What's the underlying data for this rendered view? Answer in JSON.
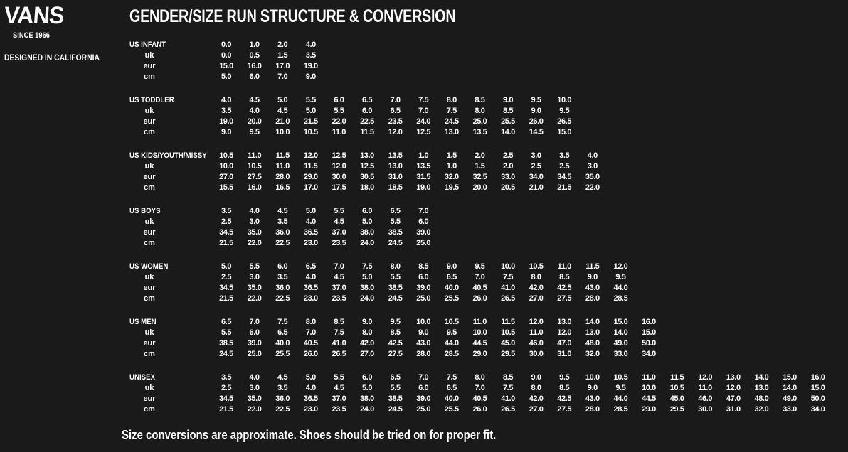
{
  "brand": {
    "logo_text": "VANS",
    "since": "SINCE 1966",
    "tagline": "DESIGNED IN CALIFORNIA"
  },
  "title": "GENDER/SIZE RUN STRUCTURE & CONVERSION",
  "sub_labels": [
    "uk",
    "eur",
    "cm"
  ],
  "sections": [
    {
      "label": "US INFANT",
      "us": [
        "0.0",
        "1.0",
        "2.0",
        "4.0"
      ],
      "uk": [
        "0.0",
        "0.5",
        "1.5",
        "3.5"
      ],
      "eur": [
        "15.0",
        "16.0",
        "17.0",
        "19.0"
      ],
      "cm": [
        "5.0",
        "6.0",
        "7.0",
        "9.0"
      ]
    },
    {
      "label": "US TODDLER",
      "us": [
        "4.0",
        "4.5",
        "5.0",
        "5.5",
        "6.0",
        "6.5",
        "7.0",
        "7.5",
        "8.0",
        "8.5",
        "9.0",
        "9.5",
        "10.0"
      ],
      "uk": [
        "3.5",
        "4.0",
        "4.5",
        "5.0",
        "5.5",
        "6.0",
        "6.5",
        "7.0",
        "7.5",
        "8.0",
        "8.5",
        "9.0",
        "9.5"
      ],
      "eur": [
        "19.0",
        "20.0",
        "21.0",
        "21.5",
        "22.0",
        "22.5",
        "23.5",
        "24.0",
        "24.5",
        "25.0",
        "25.5",
        "26.0",
        "26.5"
      ],
      "cm": [
        "9.0",
        "9.5",
        "10.0",
        "10.5",
        "11.0",
        "11.5",
        "12.0",
        "12.5",
        "13.0",
        "13.5",
        "14.0",
        "14.5",
        "15.0"
      ]
    },
    {
      "label": "US KIDS/YOUTH/MISSY",
      "us": [
        "10.5",
        "11.0",
        "11.5",
        "12.0",
        "12.5",
        "13.0",
        "13.5",
        "1.0",
        "1.5",
        "2.0",
        "2.5",
        "3.0",
        "3.5",
        "4.0"
      ],
      "uk": [
        "10.0",
        "10.5",
        "11.0",
        "11.5",
        "12.0",
        "12.5",
        "13.0",
        "13.5",
        "1.0",
        "1.5",
        "2.0",
        "2.5",
        "2.5",
        "3.0"
      ],
      "eur": [
        "27.0",
        "27.5",
        "28.0",
        "29.0",
        "30.0",
        "30.5",
        "31.0",
        "31.5",
        "32.0",
        "32.5",
        "33.0",
        "34.0",
        "34.5",
        "35.0"
      ],
      "cm": [
        "15.5",
        "16.0",
        "16.5",
        "17.0",
        "17.5",
        "18.0",
        "18.5",
        "19.0",
        "19.5",
        "20.0",
        "20.5",
        "21.0",
        "21.5",
        "22.0"
      ]
    },
    {
      "label": "US BOYS",
      "us": [
        "3.5",
        "4.0",
        "4.5",
        "5.0",
        "5.5",
        "6.0",
        "6.5",
        "7.0"
      ],
      "uk": [
        "2.5",
        "3.0",
        "3.5",
        "4.0",
        "4.5",
        "5.0",
        "5.5",
        "6.0"
      ],
      "eur": [
        "34.5",
        "35.0",
        "36.0",
        "36.5",
        "37.0",
        "38.0",
        "38.5",
        "39.0"
      ],
      "cm": [
        "21.5",
        "22.0",
        "22.5",
        "23.0",
        "23.5",
        "24.0",
        "24.5",
        "25.0"
      ]
    },
    {
      "label": "US WOMEN",
      "us": [
        "5.0",
        "5.5",
        "6.0",
        "6.5",
        "7.0",
        "7.5",
        "8.0",
        "8.5",
        "9.0",
        "9.5",
        "10.0",
        "10.5",
        "11.0",
        "11.5",
        "12.0"
      ],
      "uk": [
        "2.5",
        "3.0",
        "3.5",
        "4.0",
        "4.5",
        "5.0",
        "5.5",
        "6.0",
        "6.5",
        "7.0",
        "7.5",
        "8.0",
        "8.5",
        "9.0",
        "9.5"
      ],
      "eur": [
        "34.5",
        "35.0",
        "36.0",
        "36.5",
        "37.0",
        "38.0",
        "38.5",
        "39.0",
        "40.0",
        "40.5",
        "41.0",
        "42.0",
        "42.5",
        "43.0",
        "44.0"
      ],
      "cm": [
        "21.5",
        "22.0",
        "22.5",
        "23.0",
        "23.5",
        "24.0",
        "24.5",
        "25.0",
        "25.5",
        "26.0",
        "26.5",
        "27.0",
        "27.5",
        "28.0",
        "28.5"
      ]
    },
    {
      "label": "US MEN",
      "us": [
        "6.5",
        "7.0",
        "7.5",
        "8.0",
        "8.5",
        "9.0",
        "9.5",
        "10.0",
        "10.5",
        "11.0",
        "11.5",
        "12.0",
        "13.0",
        "14.0",
        "15.0",
        "16.0"
      ],
      "uk": [
        "5.5",
        "6.0",
        "6.5",
        "7.0",
        "7.5",
        "8.0",
        "8.5",
        "9.0",
        "9.5",
        "10.0",
        "10.5",
        "11.0",
        "12.0",
        "13.0",
        "14.0",
        "15.0"
      ],
      "eur": [
        "38.5",
        "39.0",
        "40.0",
        "40.5",
        "41.0",
        "42.0",
        "42.5",
        "43.0",
        "44.0",
        "44.5",
        "45.0",
        "46.0",
        "47.0",
        "48.0",
        "49.0",
        "50.0"
      ],
      "cm": [
        "24.5",
        "25.0",
        "25.5",
        "26.0",
        "26.5",
        "27.0",
        "27.5",
        "28.0",
        "28.5",
        "29.0",
        "29.5",
        "30.0",
        "31.0",
        "32.0",
        "33.0",
        "34.0"
      ]
    },
    {
      "label": "UNISEX",
      "us": [
        "3.5",
        "4.0",
        "4.5",
        "5.0",
        "5.5",
        "6.0",
        "6.5",
        "7.0",
        "7.5",
        "8.0",
        "8.5",
        "9.0",
        "9.5",
        "10.0",
        "10.5",
        "11.0",
        "11.5",
        "12.0",
        "13.0",
        "14.0",
        "15.0",
        "16.0"
      ],
      "uk": [
        "2.5",
        "3.0",
        "3.5",
        "4.0",
        "4.5",
        "5.0",
        "5.5",
        "6.0",
        "6.5",
        "7.0",
        "7.5",
        "8.0",
        "8.5",
        "9.0",
        "9.5",
        "10.0",
        "10.5",
        "11.0",
        "12.0",
        "13.0",
        "14.0",
        "15.0"
      ],
      "eur": [
        "34.5",
        "35.0",
        "36.0",
        "36.5",
        "37.0",
        "38.0",
        "38.5",
        "39.0",
        "40.0",
        "40.5",
        "41.0",
        "42.0",
        "42.5",
        "43.0",
        "44.0",
        "44.5",
        "45.0",
        "46.0",
        "47.0",
        "48.0",
        "49.0",
        "50.0"
      ],
      "cm": [
        "21.5",
        "22.0",
        "22.5",
        "23.0",
        "23.5",
        "24.0",
        "24.5",
        "25.0",
        "25.5",
        "26.0",
        "26.5",
        "27.0",
        "27.5",
        "28.0",
        "28.5",
        "29.0",
        "29.5",
        "30.0",
        "31.0",
        "32.0",
        "33.0",
        "34.0"
      ]
    }
  ],
  "footer": "Size conversions are approximate. Shoes should be tried on for proper fit."
}
